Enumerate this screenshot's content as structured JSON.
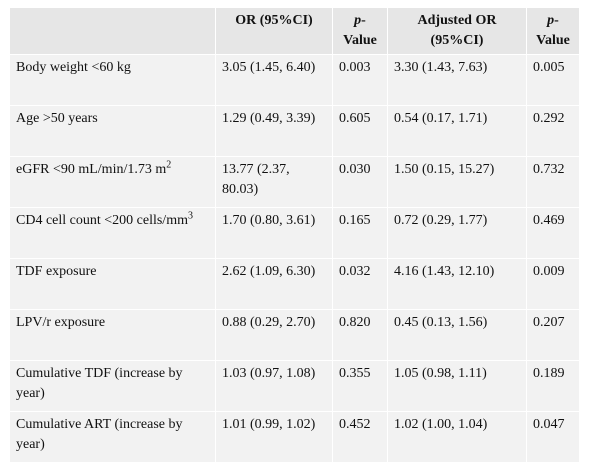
{
  "table": {
    "headers": {
      "variable": "",
      "or": "OR (95%CI)",
      "p_italic": "p",
      "p_rest": "-Value",
      "aor": "Adjusted OR (95%CI)",
      "ap_italic": "p",
      "ap_rest": "-Value"
    },
    "rows": [
      {
        "label": "Body weight <60 kg",
        "sup": "",
        "or": "3.05 (1.45, 6.40)",
        "p": "0.003",
        "aor": "3.30 (1.43, 7.63)",
        "ap": "0.005"
      },
      {
        "label": "Age >50 years",
        "sup": "",
        "or": "1.29 (0.49, 3.39)",
        "p": "0.605",
        "aor": "0.54 (0.17, 1.71)",
        "ap": "0.292"
      },
      {
        "label": "eGFR <90 mL/min/1.73 m",
        "sup": "2",
        "or": "13.77 (2.37, 80.03)",
        "p": "0.030",
        "aor": "1.50 (0.15, 15.27)",
        "ap": "0.732"
      },
      {
        "label": "CD4 cell count <200 cells/mm",
        "sup": "3",
        "or": "1.70 (0.80, 3.61)",
        "p": "0.165",
        "aor": "0.72 (0.29, 1.77)",
        "ap": "0.469"
      },
      {
        "label": "TDF exposure",
        "sup": "",
        "or": "2.62 (1.09, 6.30)",
        "p": "0.032",
        "aor": "4.16 (1.43, 12.10)",
        "ap": "0.009"
      },
      {
        "label": "LPV/r exposure",
        "sup": "",
        "or": "0.88 (0.29, 2.70)",
        "p": "0.820",
        "aor": "0.45 (0.13, 1.56)",
        "ap": "0.207"
      },
      {
        "label": "Cumulative TDF (increase by year)",
        "sup": "",
        "or": "1.03 (0.97, 1.08)",
        "p": "0.355",
        "aor": "1.05 (0.98, 1.11)",
        "ap": "0.189"
      },
      {
        "label": "Cumulative ART (increase by year)",
        "sup": "",
        "or": "1.01 (0.99, 1.02)",
        "p": "0.452",
        "aor": "1.02 (1.00, 1.04)",
        "ap": "0.047"
      }
    ]
  }
}
